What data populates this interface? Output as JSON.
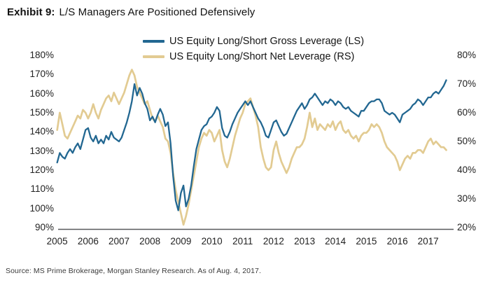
{
  "title": {
    "exhibit": "Exhibit 9:",
    "text": "L/S Managers Are Positioned Defensively"
  },
  "legend": [
    {
      "label": "US Equity Long/Short Gross Leverage (LS)"
    },
    {
      "label": "US Equity Long/Short Net Leverage (RS)"
    }
  ],
  "source_note": "Source: MS Prime Brokerage, Morgan Stanley Research. As of Aug. 4, 2017.",
  "chart_data": {
    "type": "line",
    "title": "Exhibit 9: L/S Managers Are Positioned Defensively",
    "x_start_year": 2005,
    "x_end": "Aug 2017",
    "points_per_year": 12,
    "grid": "off",
    "legend_position": "top-center",
    "axis_line_color": "#58595b",
    "x_tick_labels": [
      "2005",
      "2006",
      "2007",
      "2008",
      "2009",
      "2010",
      "2011",
      "2012",
      "2013",
      "2014",
      "2015",
      "2016",
      "2017"
    ],
    "left_axis": {
      "min": 90,
      "max": 180,
      "step": 10,
      "tick_labels": [
        "180%",
        "170%",
        "160%",
        "150%",
        "140%",
        "130%",
        "120%",
        "110%",
        "100%",
        "90%"
      ]
    },
    "right_axis": {
      "min": 20,
      "max": 80,
      "step": 10,
      "tick_labels": [
        "80%",
        "70%",
        "60%",
        "50%",
        "40%",
        "30%",
        "20%"
      ]
    },
    "series": [
      {
        "name": "US Equity Long/Short Gross Leverage (LS)",
        "axis": "left",
        "color": "#226791",
        "unit": "%",
        "values": [
          124,
          129,
          127,
          126,
          129,
          131,
          129,
          132,
          134,
          131,
          136,
          141,
          142,
          137,
          135,
          138,
          134,
          136,
          134,
          138,
          136,
          140,
          137,
          136,
          135,
          137,
          141,
          145,
          150,
          156,
          165,
          159,
          163,
          160,
          155,
          152,
          146,
          148,
          145,
          149,
          152,
          149,
          143,
          145,
          134,
          117,
          104,
          99,
          108,
          112,
          101,
          105,
          112,
          122,
          131,
          136,
          141,
          143,
          144,
          147,
          148,
          150,
          153,
          151,
          142,
          138,
          137,
          140,
          144,
          147,
          150,
          152,
          154,
          156,
          154,
          156,
          153,
          150,
          147,
          145,
          142,
          138,
          137,
          141,
          145,
          146,
          143,
          140,
          138,
          139,
          142,
          145,
          148,
          151,
          153,
          155,
          152,
          154,
          157,
          158,
          160,
          158,
          156,
          154,
          156,
          155,
          157,
          156,
          154,
          156,
          155,
          153,
          152,
          153,
          151,
          150,
          149,
          148,
          151,
          151,
          153,
          155,
          156,
          156,
          157,
          157,
          155,
          151,
          150,
          149,
          150,
          149,
          147,
          145,
          149,
          150,
          151,
          152,
          154,
          155,
          157,
          156,
          154,
          156,
          158,
          158,
          160,
          161,
          160,
          162,
          164,
          167
        ]
      },
      {
        "name": "US Equity Long/Short Net Leverage (RS)",
        "axis": "right",
        "color": "#e2cb92",
        "unit": "%",
        "values": [
          54,
          60,
          56,
          52,
          51,
          53,
          55,
          57,
          59,
          58,
          61,
          60,
          58,
          60,
          63,
          60,
          58,
          61,
          63,
          65,
          66,
          64,
          67,
          65,
          63,
          65,
          67,
          70,
          73,
          75,
          73,
          69,
          67,
          65,
          63,
          64,
          61,
          58,
          57,
          59,
          57,
          55,
          51,
          50,
          46,
          39,
          33,
          29,
          25,
          21,
          24,
          28,
          33,
          38,
          43,
          48,
          51,
          53,
          52,
          54,
          53,
          50,
          52,
          54,
          47,
          43,
          41,
          44,
          48,
          52,
          55,
          58,
          60,
          63,
          64,
          65,
          62,
          59,
          55,
          48,
          44,
          41,
          40,
          41,
          47,
          50,
          46,
          43,
          41,
          39,
          41,
          44,
          46,
          48,
          48,
          49,
          51,
          55,
          60,
          55,
          58,
          54,
          56,
          55,
          54,
          56,
          55,
          57,
          54,
          56,
          57,
          54,
          53,
          54,
          52,
          51,
          52,
          50,
          52,
          53,
          53,
          54,
          56,
          55,
          56,
          55,
          53,
          50,
          48,
          47,
          46,
          45,
          43,
          40,
          42,
          44,
          45,
          44,
          46,
          46,
          47,
          47,
          46,
          48,
          50,
          51,
          49,
          50,
          49,
          48,
          48,
          47
        ]
      }
    ]
  }
}
